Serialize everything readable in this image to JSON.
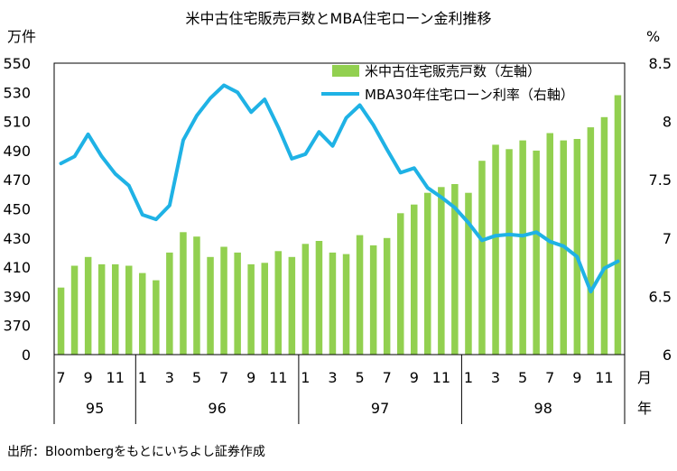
{
  "chart_data": {
    "type": "bar+line",
    "title": "米中古住宅販売戸数とMBA住宅ローン金利推移",
    "left_unit": "万件",
    "right_unit": "%",
    "x_unit": "月\n年",
    "left_axis": {
      "min": 0,
      "display_min": 370,
      "max": 550,
      "ticks": [
        0,
        370,
        390,
        410,
        430,
        450,
        470,
        490,
        510,
        530,
        550
      ]
    },
    "right_axis": {
      "min": 6,
      "max": 8.5,
      "ticks": [
        "6",
        "6.5",
        "7",
        "7.5",
        "8",
        "8.5"
      ]
    },
    "month_labels": [
      "7",
      "",
      "9",
      "",
      "11",
      "",
      "1",
      "",
      "3",
      "",
      "5",
      "",
      "7",
      "",
      "9",
      "",
      "11",
      "",
      "1",
      "",
      "3",
      "",
      "5",
      "",
      "7",
      "",
      "9",
      "",
      "11",
      "",
      "1",
      "",
      "3",
      "",
      "5",
      "",
      "7",
      "",
      "9",
      "",
      "11",
      ""
    ],
    "year_groups": [
      {
        "label": "95",
        "start": 0,
        "count": 6
      },
      {
        "label": "96",
        "start": 6,
        "count": 12
      },
      {
        "label": "97",
        "start": 18,
        "count": 12
      },
      {
        "label": "98",
        "start": 30,
        "count": 12
      }
    ],
    "series": [
      {
        "name": "米中古住宅販売戸数（左軸）",
        "type": "bar",
        "color": "#92d050",
        "values": [
          396,
          411,
          417,
          412,
          412,
          411,
          406,
          401,
          420,
          434,
          431,
          417,
          424,
          420,
          412,
          413,
          421,
          417,
          426,
          428,
          420,
          419,
          432,
          425,
          430,
          447,
          453,
          461,
          465,
          467,
          461,
          483,
          494,
          491,
          497,
          490,
          502,
          497,
          498,
          506,
          513,
          528
        ]
      },
      {
        "name": "MBA30年住宅ローン利率（右軸）",
        "type": "line",
        "color": "#1fb2e5",
        "values": [
          7.64,
          7.7,
          7.89,
          7.7,
          7.55,
          7.45,
          7.2,
          7.16,
          7.28,
          7.84,
          8.05,
          8.2,
          8.31,
          8.25,
          8.08,
          8.19,
          7.95,
          7.68,
          7.72,
          7.91,
          7.79,
          8.03,
          8.14,
          7.97,
          7.76,
          7.56,
          7.6,
          7.43,
          7.35,
          7.26,
          7.13,
          6.98,
          7.02,
          7.03,
          7.02,
          7.05,
          6.97,
          6.93,
          6.84,
          6.54,
          6.74,
          6.8
        ]
      }
    ],
    "source": "出所：Bloombergをもとにいちよし証券作成"
  }
}
